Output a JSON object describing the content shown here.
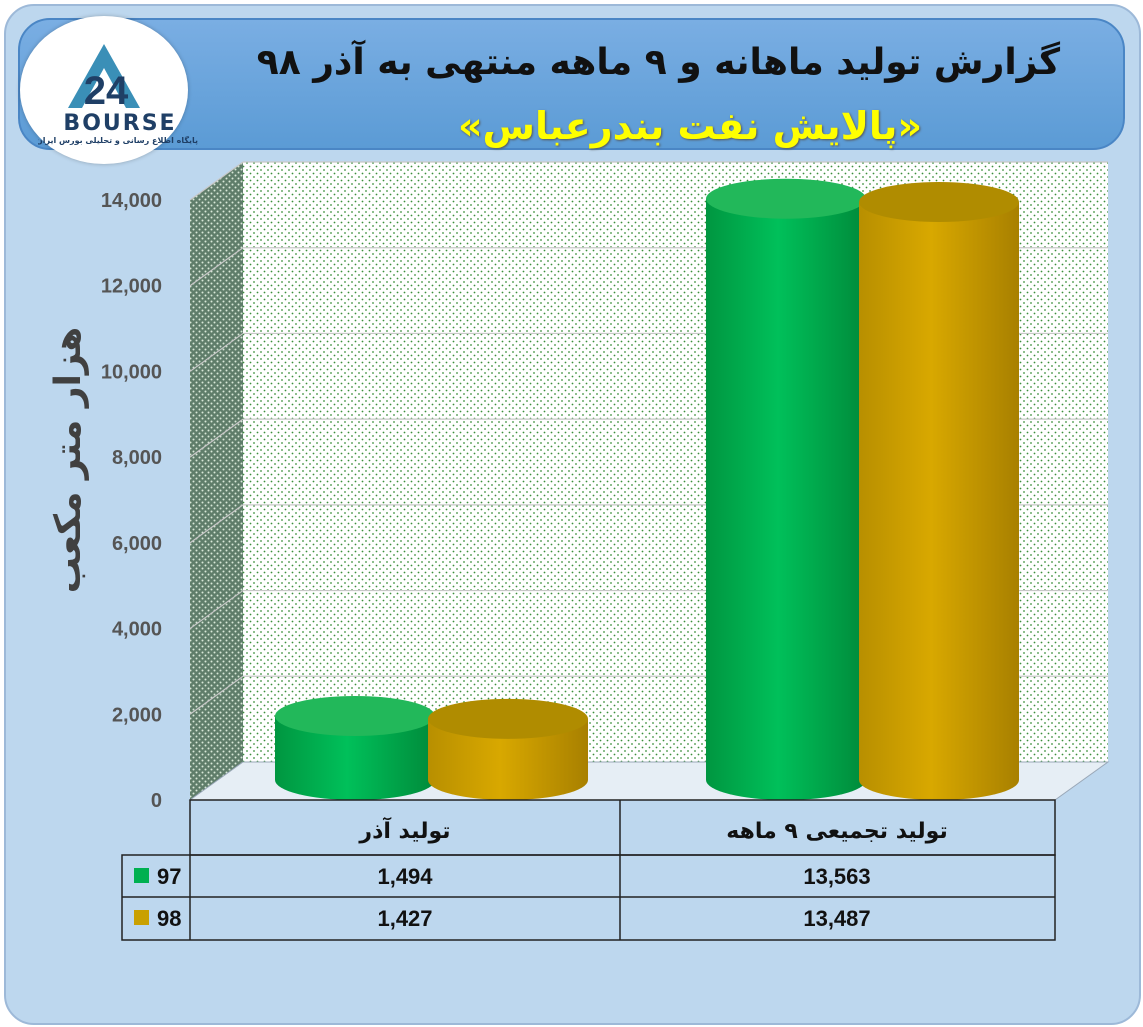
{
  "header": {
    "title": "گزارش تولید ماهانه و ۹ ماهه منتهی به آذر ۹۸",
    "subtitle": "«پالایش نفت بندرعباس»"
  },
  "logo": {
    "word": "BOURSE",
    "tagline": "پایگاه اطلاع رسانی و تحلیلی بورس ایران",
    "numeral": "24"
  },
  "colors": {
    "series97": "#00b050",
    "series98": "#c9a000",
    "background": "#bdd7ee",
    "banner": "#5b9bd5",
    "title": "#ffff00"
  },
  "chart_data": {
    "type": "bar",
    "style": "3d-cylinder",
    "categories": [
      "تولید آذر",
      "تولید تجمیعی ۹ ماهه"
    ],
    "series": [
      {
        "name": "97",
        "values": [
          1494,
          13563
        ],
        "value_labels": [
          "1,494",
          "13,563"
        ],
        "color": "#00b050"
      },
      {
        "name": "98",
        "values": [
          1427,
          13487
        ],
        "value_labels": [
          "1,427",
          "13,487"
        ],
        "color": "#c9a000"
      }
    ],
    "ylabel": "هزار متر مکعب",
    "ylim": [
      0,
      14000
    ],
    "yticks": [
      0,
      2000,
      4000,
      6000,
      8000,
      10000,
      12000,
      14000
    ],
    "ytick_labels": [
      "0",
      "2,000",
      "4,000",
      "6,000",
      "8,000",
      "10,000",
      "12,000",
      "14,000"
    ],
    "grid": true,
    "legend": "data-table"
  }
}
